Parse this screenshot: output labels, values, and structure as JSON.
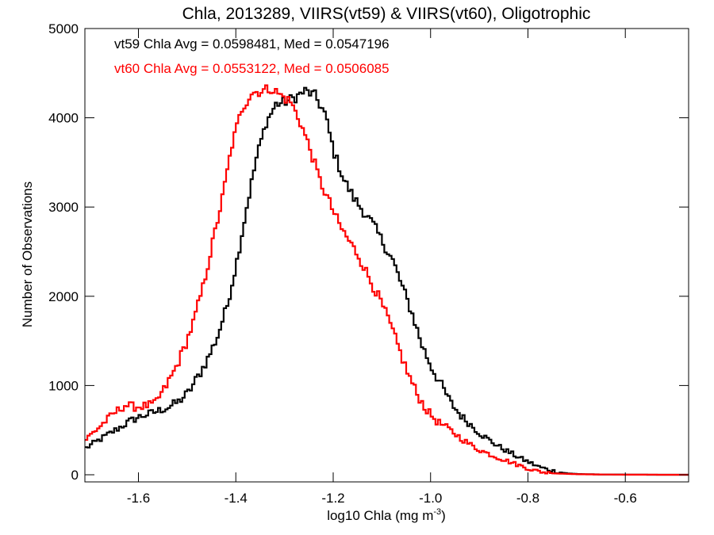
{
  "chart_data": {
    "type": "line",
    "title": "Chla, 2013289, VIIRS(vt59) & VIIRS(vt60), Oligotrophic",
    "xlabel_main": "log10 Chla (mg m",
    "xlabel_sup": "-3",
    "xlabel_end": ")",
    "ylabel": "Number of Observations",
    "xlim": [
      -1.71,
      -0.47
    ],
    "ylim": [
      -80,
      5000
    ],
    "x_ticks": [
      -1.6,
      -1.4,
      -1.2,
      -1.0,
      -0.8,
      -0.6
    ],
    "x_tick_labels": [
      "-1.6",
      "-1.4",
      "-1.2",
      "-1.0",
      "-0.8",
      "-0.6"
    ],
    "y_ticks": [
      0,
      1000,
      2000,
      3000,
      4000,
      5000
    ],
    "y_tick_labels": [
      "0",
      "1000",
      "2000",
      "3000",
      "4000",
      "5000"
    ],
    "annotations": [
      {
        "text": "vt59 Chla Avg = 0.0598481, Med = 0.0547196",
        "color": "#000000"
      },
      {
        "text": "vt60 Chla Avg = 0.0553122, Med = 0.0506085",
        "color": "#ff0000"
      }
    ],
    "step": 0.005,
    "series": [
      {
        "color": "#000000",
        "x": [
          -1.71,
          -1.68,
          -1.65,
          -1.62,
          -1.6,
          -1.57,
          -1.54,
          -1.52,
          -1.5,
          -1.48,
          -1.46,
          -1.44,
          -1.42,
          -1.4,
          -1.38,
          -1.36,
          -1.34,
          -1.32,
          -1.3,
          -1.28,
          -1.26,
          -1.24,
          -1.22,
          -1.2,
          -1.18,
          -1.16,
          -1.14,
          -1.12,
          -1.1,
          -1.08,
          -1.06,
          -1.04,
          -1.02,
          -1.0,
          -0.98,
          -0.96,
          -0.94,
          -0.92,
          -0.9,
          -0.88,
          -0.86,
          -0.84,
          -0.82,
          -0.8,
          -0.78,
          -0.76,
          -0.74,
          -0.72,
          -0.7,
          -0.65,
          -0.6,
          -0.55,
          -0.5,
          -0.47
        ],
        "y": [
          300,
          400,
          500,
          600,
          650,
          700,
          760,
          820,
          920,
          1100,
          1300,
          1550,
          1900,
          2400,
          3000,
          3550,
          3950,
          4150,
          4180,
          4230,
          4300,
          4250,
          4050,
          3600,
          3300,
          3100,
          2950,
          2800,
          2600,
          2400,
          2100,
          1800,
          1450,
          1200,
          1000,
          800,
          660,
          560,
          460,
          380,
          310,
          250,
          190,
          140,
          90,
          55,
          30,
          15,
          8,
          3,
          2,
          0,
          0,
          0
        ],
        "jitter_amp": 60
      },
      {
        "color": "#ff0000",
        "x": [
          -1.71,
          -1.68,
          -1.65,
          -1.63,
          -1.61,
          -1.59,
          -1.57,
          -1.55,
          -1.53,
          -1.51,
          -1.49,
          -1.47,
          -1.45,
          -1.43,
          -1.41,
          -1.39,
          -1.37,
          -1.35,
          -1.33,
          -1.31,
          -1.29,
          -1.27,
          -1.25,
          -1.23,
          -1.21,
          -1.19,
          -1.17,
          -1.15,
          -1.13,
          -1.11,
          -1.09,
          -1.07,
          -1.05,
          -1.03,
          -1.01,
          -0.99,
          -0.97,
          -0.95,
          -0.93,
          -0.91,
          -0.89,
          -0.87,
          -0.85,
          -0.83,
          -0.81,
          -0.79,
          -0.77,
          -0.75,
          -0.7,
          -0.65,
          -0.6,
          -0.5,
          -0.47
        ],
        "y": [
          400,
          550,
          700,
          780,
          760,
          770,
          790,
          950,
          1150,
          1400,
          1700,
          2100,
          2600,
          3100,
          3700,
          4100,
          4280,
          4300,
          4330,
          4250,
          4180,
          3950,
          3650,
          3300,
          3050,
          2800,
          2620,
          2450,
          2220,
          2000,
          1750,
          1450,
          1150,
          900,
          720,
          600,
          530,
          450,
          370,
          300,
          250,
          205,
          165,
          125,
          85,
          50,
          28,
          15,
          6,
          3,
          1,
          0,
          0
        ],
        "jitter_amp": 60
      }
    ]
  }
}
